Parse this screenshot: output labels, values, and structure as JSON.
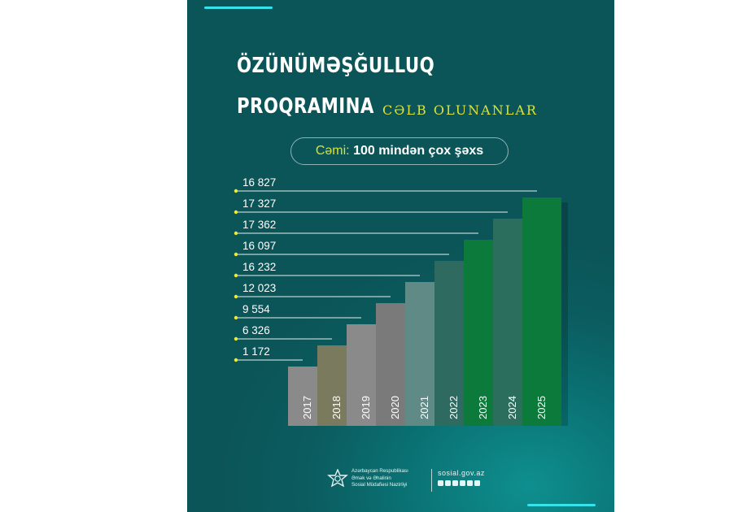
{
  "header": {
    "title_line1": "ÖZÜNÜMƏŞĞULLUQ",
    "title_line2": "PROQRAMINA",
    "subtitle": "CƏLB OLUNANLAR",
    "total_label": "Cəmi:",
    "total_value": "100 mindən çox şəxs"
  },
  "colors": {
    "background": "#0b5d60",
    "accent": "#34e4ea",
    "highlight": "#d9e23a",
    "leader_dot": "#f2ea2a"
  },
  "chart_data": {
    "type": "bar",
    "title": "",
    "xlabel": "",
    "ylabel": "",
    "categories": [
      "2017",
      "2018",
      "2019",
      "2020",
      "2021",
      "2022",
      "2023",
      "2024",
      "2025"
    ],
    "values": [
      1172,
      6326,
      9554,
      12023,
      16232,
      16097,
      17362,
      17327,
      16827
    ],
    "value_labels": [
      "1 172",
      "6 326",
      "9 554",
      "12 023",
      "16 232",
      "16 097",
      "17 362",
      "17 327",
      "16 827"
    ],
    "bar_colors": [
      "#8a8a8a",
      "#7a7a5e",
      "#8a8a8a",
      "#7a7a7a",
      "#5f8a85",
      "#2f6a60",
      "#0b7a3a",
      "#2b6e5e",
      "#0b7a3a"
    ]
  },
  "footer": {
    "ministry": "Azərbaycan Respublikası\nƏmək və Əhalinin\nSosial Müdafiəsi Nazirliyi",
    "website": "sosial.gov.az",
    "social_icons": [
      "facebook-icon",
      "instagram-icon",
      "telegram-icon",
      "tiktok-icon",
      "youtube-icon",
      "linkedin-icon"
    ]
  }
}
